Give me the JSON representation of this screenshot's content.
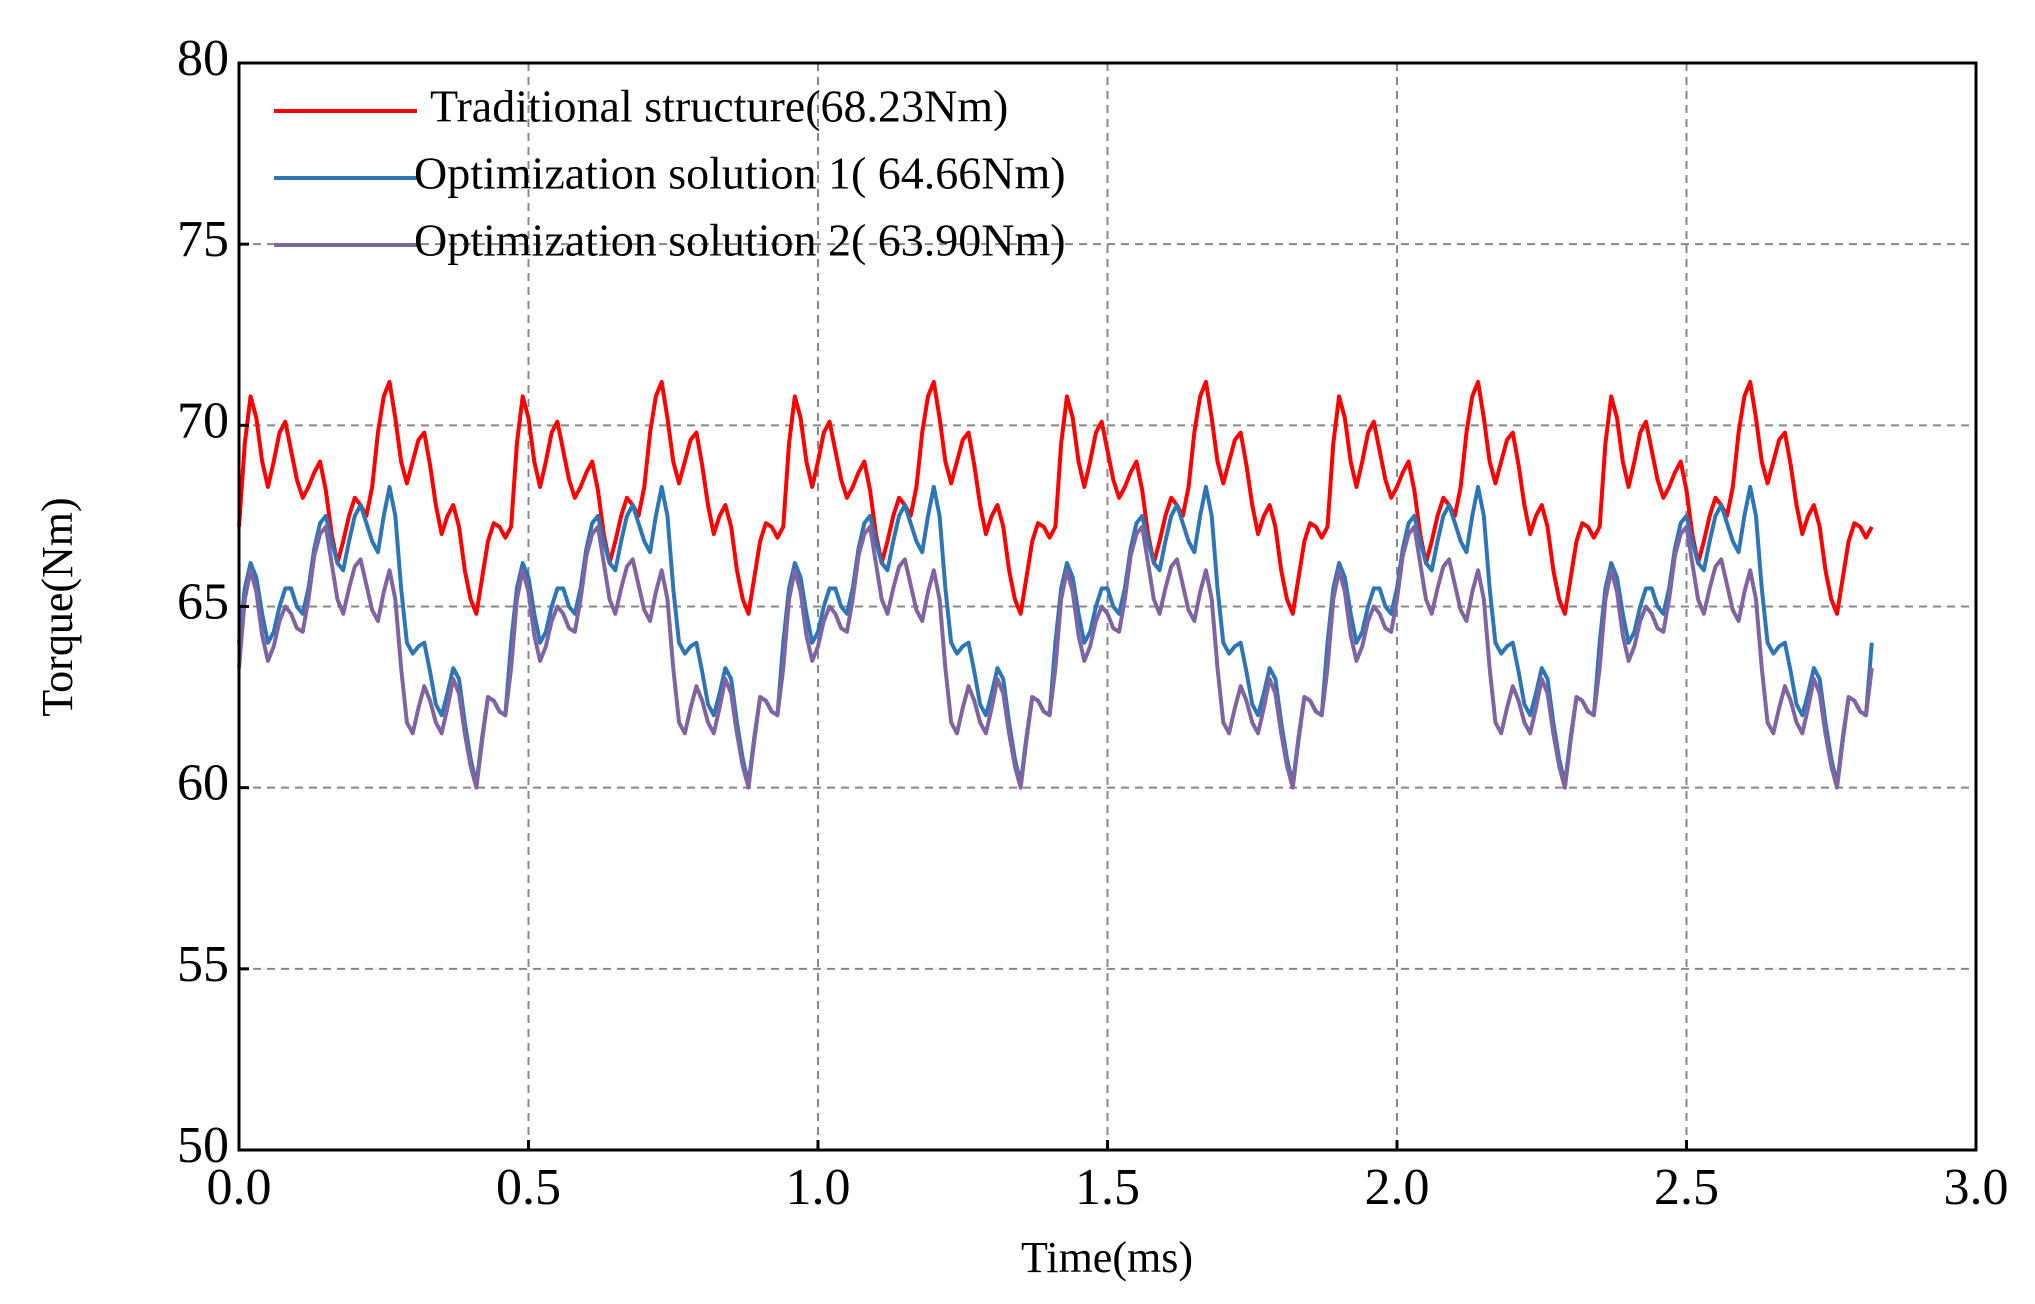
{
  "chart_data": {
    "type": "line",
    "xlabel": "Time(ms)",
    "ylabel": "Torque(Nm)",
    "xlim": [
      0,
      3
    ],
    "ylim": [
      50,
      80
    ],
    "xticks": [
      {
        "value": 0,
        "label": "0.0"
      },
      0.5,
      {
        "value": 1,
        "label": "1.0"
      },
      1.5,
      {
        "value": 2,
        "label": "2.0"
      },
      2.5,
      {
        "value": 3,
        "label": "3.0"
      }
    ],
    "yticks": [
      50,
      55,
      60,
      65,
      70,
      75,
      80
    ],
    "grid": true,
    "legend": "upper left",
    "x": [
      0,
      0.01,
      0.02,
      0.03,
      0.04,
      0.05,
      0.06,
      0.07,
      0.08,
      0.09,
      0.1,
      0.11,
      0.12,
      0.13,
      0.14,
      0.15,
      0.16,
      0.17,
      0.18,
      0.19,
      0.2,
      0.21,
      0.22,
      0.23,
      0.24,
      0.25,
      0.26,
      0.27,
      0.28,
      0.29,
      0.3,
      0.31,
      0.32,
      0.33,
      0.34,
      0.35,
      0.36,
      0.37,
      0.38,
      0.39,
      0.4,
      0.41,
      0.42,
      0.43,
      0.44,
      0.45,
      0.46,
      0.47,
      0.48,
      0.49,
      0.5,
      0.51,
      0.52,
      0.53,
      0.54,
      0.55,
      0.56,
      0.57,
      0.58,
      0.59,
      0.6,
      0.61,
      0.62,
      0.63,
      0.64,
      0.65,
      0.66,
      0.67,
      0.68,
      0.69,
      0.7,
      0.71,
      0.72,
      0.73,
      0.74,
      0.75,
      0.76,
      0.77,
      0.78,
      0.79,
      0.8,
      0.81,
      0.82,
      0.83,
      0.84,
      0.85,
      0.86,
      0.87,
      0.88,
      0.89,
      0.9,
      0.91,
      0.92,
      0.93,
      0.94,
      0.95,
      0.96,
      0.97,
      0.98,
      0.99,
      1,
      1.01,
      1.02,
      1.03,
      1.04,
      1.05,
      1.06,
      1.07,
      1.08,
      1.09,
      1.1,
      1.11,
      1.12,
      1.13,
      1.14,
      1.15,
      1.16,
      1.17,
      1.18,
      1.19,
      1.2,
      1.21,
      1.22,
      1.23,
      1.24,
      1.25,
      1.26,
      1.27,
      1.28,
      1.29,
      1.3,
      1.31,
      1.32,
      1.33,
      1.34,
      1.35,
      1.36,
      1.37,
      1.38,
      1.39,
      1.4,
      1.41,
      1.42,
      1.43,
      1.44,
      1.45,
      1.46,
      1.47,
      1.48,
      1.49,
      1.5,
      1.51,
      1.52,
      1.53,
      1.54,
      1.55,
      1.56,
      1.57,
      1.58,
      1.59,
      1.6,
      1.61,
      1.62,
      1.63,
      1.64,
      1.65,
      1.66,
      1.67,
      1.68,
      1.69,
      1.7,
      1.71,
      1.72,
      1.73,
      1.74,
      1.75,
      1.76,
      1.77,
      1.78,
      1.79,
      1.8,
      1.81,
      1.82,
      1.83,
      1.84,
      1.85,
      1.86,
      1.87,
      1.88,
      1.89,
      1.9,
      1.91,
      1.92,
      1.93,
      1.94,
      1.95,
      1.96,
      1.97,
      1.98,
      1.99,
      2,
      2.01,
      2.02,
      2.03,
      2.04,
      2.05,
      2.06,
      2.07,
      2.08,
      2.09,
      2.1,
      2.11,
      2.12,
      2.13,
      2.14,
      2.15,
      2.16,
      2.17,
      2.18,
      2.19,
      2.2,
      2.21,
      2.22,
      2.23,
      2.24,
      2.25,
      2.26,
      2.27,
      2.28,
      2.29,
      2.3,
      2.31,
      2.32,
      2.33,
      2.34,
      2.35,
      2.36,
      2.37,
      2.38,
      2.39,
      2.4,
      2.41,
      2.42,
      2.43,
      2.44,
      2.45,
      2.46,
      2.47,
      2.48,
      2.49,
      2.5,
      2.51,
      2.52,
      2.53,
      2.54,
      2.55,
      2.56,
      2.57,
      2.58,
      2.59,
      2.6,
      2.61,
      2.62,
      2.63,
      2.64,
      2.65,
      2.66,
      2.67,
      2.68,
      2.69,
      2.7,
      2.71,
      2.72,
      2.73,
      2.74,
      2.75,
      2.76,
      2.77,
      2.78,
      2.79,
      2.8,
      2.81,
      2.82
    ],
    "series": [
      {
        "name": "Traditional structure(68.23Nm)",
        "color": "#ff0000",
        "values": [
          67.2,
          69.5,
          70.8,
          70.2,
          69.0,
          68.3,
          69.0,
          69.8,
          70.1,
          69.3,
          68.5,
          68.0,
          68.3,
          68.7,
          69.0,
          68.2,
          67.0,
          66.2,
          66.8,
          67.5,
          68.0,
          67.8,
          67.5,
          68.3,
          69.8,
          70.8,
          71.2,
          70.2,
          69.0,
          68.4,
          69.0,
          69.6,
          69.8,
          68.9,
          67.8,
          67.0,
          67.5,
          67.8,
          67.2,
          66.0,
          65.2,
          64.8,
          65.8,
          66.8,
          67.3,
          67.2,
          66.9,
          67.2,
          69.5,
          70.8,
          70.2,
          69.0,
          68.3,
          69.0,
          69.8,
          70.1,
          69.3,
          68.5,
          68.0,
          68.3,
          68.7,
          69.0,
          68.2,
          67.0,
          66.2,
          66.8,
          67.5,
          68.0,
          67.8,
          67.5,
          68.3,
          69.8,
          70.8,
          71.2,
          70.2,
          69.0,
          68.4,
          69.0,
          69.6,
          69.8,
          68.9,
          67.8,
          67.0,
          67.5,
          67.8,
          67.2,
          66.0,
          65.2,
          64.8,
          65.8,
          66.8,
          67.3,
          67.2,
          66.9,
          67.2,
          69.5,
          70.8,
          70.2,
          69.0,
          68.3,
          69.0,
          69.8,
          70.1,
          69.3,
          68.5,
          68.0,
          68.3,
          68.7,
          69.0,
          68.2,
          67.0,
          66.2,
          66.8,
          67.5,
          68.0,
          67.8,
          67.5,
          68.3,
          69.8,
          70.8,
          71.2,
          70.2,
          69.0,
          68.4,
          69.0,
          69.6,
          69.8,
          68.9,
          67.8,
          67.0,
          67.5,
          67.8,
          67.2,
          66.0,
          65.2,
          64.8,
          65.8,
          66.8,
          67.3,
          67.2,
          66.9,
          67.2,
          69.5,
          70.8,
          70.2,
          69.0,
          68.3,
          69.0,
          69.8,
          70.1,
          69.3,
          68.5,
          68.0,
          68.3,
          68.7,
          69.0,
          68.2,
          67.0,
          66.2,
          66.8,
          67.5,
          68.0,
          67.8,
          67.5,
          68.3,
          69.8,
          70.8,
          71.2,
          70.2,
          69.0,
          68.4,
          69.0,
          69.6,
          69.8,
          68.9,
          67.8,
          67.0,
          67.5,
          67.8,
          67.2,
          66.0,
          65.2,
          64.8,
          65.8,
          66.8,
          67.3,
          67.2,
          66.9,
          67.2,
          69.5,
          70.8,
          70.2,
          69.0,
          68.3,
          69.0,
          69.8,
          70.1,
          69.3,
          68.5,
          68.0,
          68.3,
          68.7,
          69.0,
          68.2,
          67.0,
          66.2,
          66.8,
          67.5,
          68.0,
          67.8,
          67.5,
          68.3,
          69.8,
          70.8,
          71.2,
          70.2,
          69.0,
          68.4,
          69.0,
          69.6,
          69.8,
          68.9,
          67.8,
          67.0,
          67.5,
          67.8,
          67.2,
          66.0,
          65.2,
          64.8,
          65.8,
          66.8,
          67.3,
          67.2,
          66.9,
          67.2,
          69.5,
          70.8,
          70.2,
          69.0,
          68.3,
          69.0,
          69.8,
          70.1,
          69.3,
          68.5,
          68.0,
          68.3,
          68.7,
          69.0,
          68.2,
          67.0,
          66.2,
          66.8,
          67.5,
          68.0,
          67.8,
          67.5,
          68.3,
          69.8,
          70.8,
          71.2,
          70.2,
          69.0,
          68.4,
          69.0,
          69.6,
          69.8,
          68.9,
          67.8,
          67.0,
          67.5,
          67.8,
          67.2,
          66.0,
          65.2,
          64.8,
          65.8,
          66.8,
          67.3,
          67.2,
          66.9,
          67.2
        ]
      },
      {
        "name": "Optimization solution 1( 64.66Nm)",
        "color": "#2e75b6",
        "values": [
          64.0,
          65.5,
          66.2,
          65.8,
          64.8,
          64.0,
          64.3,
          65.0,
          65.5,
          65.5,
          65.0,
          64.8,
          65.5,
          66.6,
          67.3,
          67.5,
          66.8,
          66.2,
          66.0,
          66.8,
          67.5,
          67.8,
          67.3,
          66.8,
          66.5,
          67.5,
          68.3,
          67.5,
          65.5,
          64.0,
          63.7,
          63.9,
          64.0,
          63.2,
          62.3,
          62.0,
          62.6,
          63.3,
          63.0,
          61.8,
          60.8,
          60.1,
          61.4,
          62.5,
          62.4,
          62.1,
          62.0,
          64.0,
          65.5,
          66.2,
          65.8,
          64.8,
          64.0,
          64.3,
          65.0,
          65.5,
          65.5,
          65.0,
          64.8,
          65.5,
          66.6,
          67.3,
          67.5,
          66.8,
          66.2,
          66.0,
          66.8,
          67.5,
          67.8,
          67.3,
          66.8,
          66.5,
          67.5,
          68.3,
          67.5,
          65.5,
          64.0,
          63.7,
          63.9,
          64.0,
          63.2,
          62.3,
          62.0,
          62.6,
          63.3,
          63.0,
          61.8,
          60.8,
          60.1,
          61.4,
          62.5,
          62.4,
          62.1,
          62.0,
          64.0,
          65.5,
          66.2,
          65.8,
          64.8,
          64.0,
          64.3,
          65.0,
          65.5,
          65.5,
          65.0,
          64.8,
          65.5,
          66.6,
          67.3,
          67.5,
          66.8,
          66.2,
          66.0,
          66.8,
          67.5,
          67.8,
          67.3,
          66.8,
          66.5,
          67.5,
          68.3,
          67.5,
          65.5,
          64.0,
          63.7,
          63.9,
          64.0,
          63.2,
          62.3,
          62.0,
          62.6,
          63.3,
          63.0,
          61.8,
          60.8,
          60.1,
          61.4,
          62.5,
          62.4,
          62.1,
          62.0,
          64.0,
          65.5,
          66.2,
          65.8,
          64.8,
          64.0,
          64.3,
          65.0,
          65.5,
          65.5,
          65.0,
          64.8,
          65.5,
          66.6,
          67.3,
          67.5,
          66.8,
          66.2,
          66.0,
          66.8,
          67.5,
          67.8,
          67.3,
          66.8,
          66.5,
          67.5,
          68.3,
          67.5,
          65.5,
          64.0,
          63.7,
          63.9,
          64.0,
          63.2,
          62.3,
          62.0,
          62.6,
          63.3,
          63.0,
          61.8,
          60.8,
          60.1,
          61.4,
          62.5,
          62.4,
          62.1,
          62.0,
          64.0,
          65.5,
          66.2,
          65.8,
          64.8,
          64.0,
          64.3,
          65.0,
          65.5,
          65.5,
          65.0,
          64.8,
          65.5,
          66.6,
          67.3,
          67.5,
          66.8,
          66.2,
          66.0,
          66.8,
          67.5,
          67.8,
          67.3,
          66.8,
          66.5,
          67.5,
          68.3,
          67.5,
          65.5,
          64.0,
          63.7,
          63.9,
          64.0,
          63.2,
          62.3,
          62.0,
          62.6,
          63.3,
          63.0,
          61.8,
          60.8,
          60.1,
          61.4,
          62.5,
          62.4,
          62.1,
          62.0,
          64.0,
          65.5,
          66.2,
          65.8,
          64.8,
          64.0,
          64.3,
          65.0,
          65.5,
          65.5,
          65.0,
          64.8,
          65.5,
          66.6,
          67.3,
          67.5,
          66.8,
          66.2,
          66.0,
          66.8,
          67.5,
          67.8,
          67.3,
          66.8,
          66.5,
          67.5,
          68.3,
          67.5,
          65.5,
          64.0,
          63.7,
          63.9,
          64.0,
          63.2,
          62.3,
          62.0,
          62.6,
          63.3,
          63.0,
          61.8,
          60.8,
          60.1,
          61.4,
          62.5,
          62.4,
          62.1,
          62.0,
          64.0
        ]
      },
      {
        "name": "Optimization solution 2( 63.90Nm)",
        "color": "#8064a2",
        "values": [
          63.3,
          65.2,
          66.0,
          65.4,
          64.2,
          63.5,
          63.9,
          64.6,
          65.0,
          64.8,
          64.4,
          64.3,
          65.2,
          66.4,
          67.0,
          67.2,
          66.2,
          65.2,
          64.8,
          65.5,
          66.1,
          66.3,
          65.6,
          64.9,
          64.6,
          65.4,
          66.0,
          65.2,
          63.3,
          61.8,
          61.5,
          62.2,
          62.8,
          62.4,
          61.8,
          61.5,
          62.2,
          63.0,
          62.6,
          61.5,
          60.6,
          60.0,
          61.3,
          62.5,
          62.4,
          62.1,
          62.0,
          63.3,
          65.2,
          66.0,
          65.4,
          64.2,
          63.5,
          63.9,
          64.6,
          65.0,
          64.8,
          64.4,
          64.3,
          65.2,
          66.4,
          67.0,
          67.2,
          66.2,
          65.2,
          64.8,
          65.5,
          66.1,
          66.3,
          65.6,
          64.9,
          64.6,
          65.4,
          66.0,
          65.2,
          63.3,
          61.8,
          61.5,
          62.2,
          62.8,
          62.4,
          61.8,
          61.5,
          62.2,
          63.0,
          62.6,
          61.5,
          60.6,
          60.0,
          61.3,
          62.5,
          62.4,
          62.1,
          62.0,
          63.3,
          65.2,
          66.0,
          65.4,
          64.2,
          63.5,
          63.9,
          64.6,
          65.0,
          64.8,
          64.4,
          64.3,
          65.2,
          66.4,
          67.0,
          67.2,
          66.2,
          65.2,
          64.8,
          65.5,
          66.1,
          66.3,
          65.6,
          64.9,
          64.6,
          65.4,
          66.0,
          65.2,
          63.3,
          61.8,
          61.5,
          62.2,
          62.8,
          62.4,
          61.8,
          61.5,
          62.2,
          63.0,
          62.6,
          61.5,
          60.6,
          60.0,
          61.3,
          62.5,
          62.4,
          62.1,
          62.0,
          63.3,
          65.2,
          66.0,
          65.4,
          64.2,
          63.5,
          63.9,
          64.6,
          65.0,
          64.8,
          64.4,
          64.3,
          65.2,
          66.4,
          67.0,
          67.2,
          66.2,
          65.2,
          64.8,
          65.5,
          66.1,
          66.3,
          65.6,
          64.9,
          64.6,
          65.4,
          66.0,
          65.2,
          63.3,
          61.8,
          61.5,
          62.2,
          62.8,
          62.4,
          61.8,
          61.5,
          62.2,
          63.0,
          62.6,
          61.5,
          60.6,
          60.0,
          61.3,
          62.5,
          62.4,
          62.1,
          62.0,
          63.3,
          65.2,
          66.0,
          65.4,
          64.2,
          63.5,
          63.9,
          64.6,
          65.0,
          64.8,
          64.4,
          64.3,
          65.2,
          66.4,
          67.0,
          67.2,
          66.2,
          65.2,
          64.8,
          65.5,
          66.1,
          66.3,
          65.6,
          64.9,
          64.6,
          65.4,
          66.0,
          65.2,
          63.3,
          61.8,
          61.5,
          62.2,
          62.8,
          62.4,
          61.8,
          61.5,
          62.2,
          63.0,
          62.6,
          61.5,
          60.6,
          60.0,
          61.3,
          62.5,
          62.4,
          62.1,
          62.0,
          63.3,
          65.2,
          66.0,
          65.4,
          64.2,
          63.5,
          63.9,
          64.6,
          65.0,
          64.8,
          64.4,
          64.3,
          65.2,
          66.4,
          67.0,
          67.2,
          66.2,
          65.2,
          64.8,
          65.5,
          66.1,
          66.3,
          65.6,
          64.9,
          64.6,
          65.4,
          66.0,
          65.2,
          63.3,
          61.8,
          61.5,
          62.2,
          62.8,
          62.4,
          61.8,
          61.5,
          62.2,
          63.0,
          62.6,
          61.5,
          60.6,
          60.0,
          61.3,
          62.5,
          62.4,
          62.1,
          62.0,
          63.3
        ]
      }
    ]
  }
}
